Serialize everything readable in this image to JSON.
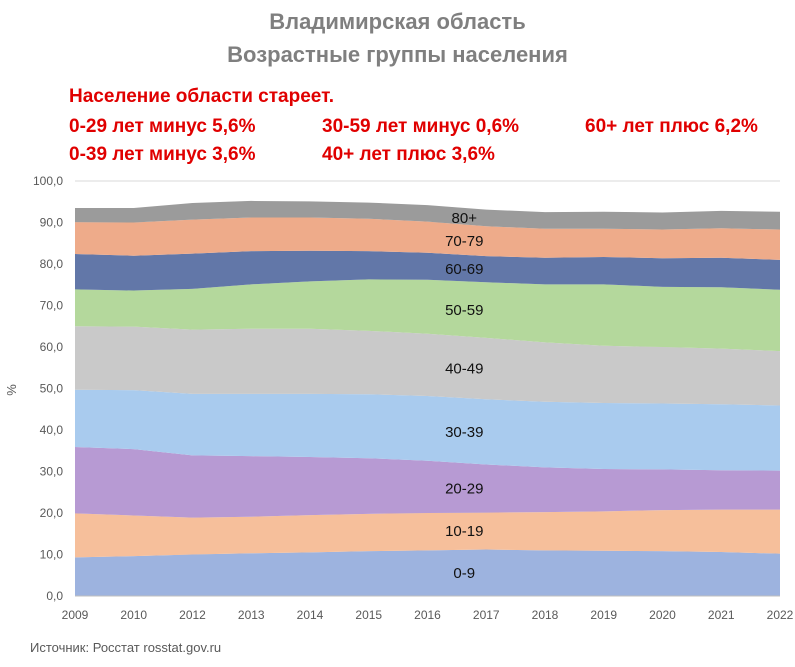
{
  "header": {
    "title": "Владимирская область",
    "subtitle": "Возрастные группы населения"
  },
  "notes": {
    "headline": "Население области стареет.",
    "n1": "0-29 лет минус 5,6%",
    "n2": "30-59 лет минус 0,6%",
    "n3": "60+ лет плюс 6,2%",
    "n4": "0-39 лет минус 3,6%",
    "n5": "40+ лет плюс 3,6%"
  },
  "source": "Источник: Росстат rosstat.gov.ru",
  "chart_data": {
    "type": "area",
    "stacked": true,
    "categories": [
      "2009",
      "2010",
      "2012",
      "2013",
      "2014",
      "2015",
      "2016",
      "2017",
      "2018",
      "2019",
      "2020",
      "2021",
      "2022"
    ],
    "ylabel": "%",
    "ylim": [
      0,
      100
    ],
    "yticks": [
      "0,0",
      "10,0",
      "20,0",
      "30,0",
      "40,0",
      "50,0",
      "60,0",
      "70,0",
      "80,0",
      "90,0",
      "100,0"
    ],
    "grid": true,
    "series": [
      {
        "name": "0-9",
        "color": "#9db3df",
        "values": [
          9.3,
          9.6,
          10.0,
          10.3,
          10.5,
          10.8,
          11.0,
          11.2,
          11.0,
          10.9,
          10.8,
          10.6,
          10.2
        ]
      },
      {
        "name": "10-19",
        "color": "#f6bf9b",
        "values": [
          10.6,
          9.8,
          8.9,
          8.8,
          9.0,
          9.0,
          9.0,
          8.9,
          9.2,
          9.5,
          9.9,
          10.2,
          10.6
        ]
      },
      {
        "name": "20-29",
        "color": "#b79ad3",
        "values": [
          16.0,
          16.0,
          15.0,
          14.6,
          14.0,
          13.4,
          12.6,
          11.6,
          10.8,
          10.2,
          9.8,
          9.5,
          9.4
        ]
      },
      {
        "name": "30-39",
        "color": "#a9cbee",
        "values": [
          13.8,
          14.2,
          14.8,
          15.0,
          15.2,
          15.4,
          15.6,
          15.7,
          15.8,
          15.9,
          15.9,
          15.9,
          15.7
        ]
      },
      {
        "name": "40-49",
        "color": "#c9c9c9",
        "values": [
          15.3,
          15.3,
          15.5,
          15.7,
          15.7,
          15.3,
          15.0,
          14.8,
          14.3,
          13.8,
          13.6,
          13.4,
          13.1
        ]
      },
      {
        "name": "50-59",
        "color": "#b4d89c",
        "values": [
          8.9,
          8.7,
          9.8,
          10.7,
          11.4,
          12.4,
          13.0,
          13.4,
          14.0,
          14.8,
          14.5,
          14.8,
          14.8
        ]
      },
      {
        "name": "60-69",
        "color": "#6277a8",
        "values": [
          8.5,
          8.4,
          8.5,
          8.0,
          7.4,
          6.8,
          6.5,
          6.3,
          6.4,
          6.6,
          6.9,
          7.1,
          7.2
        ]
      },
      {
        "name": "70-79",
        "color": "#eeab8a",
        "values": [
          7.7,
          8.0,
          8.2,
          8.1,
          8.0,
          7.8,
          7.5,
          7.2,
          7.0,
          6.8,
          6.9,
          7.1,
          7.3
        ]
      },
      {
        "name": "80+",
        "color": "#9b9b9b",
        "values": [
          3.4,
          3.5,
          4.0,
          4.0,
          3.9,
          3.9,
          4.0,
          4.0,
          4.0,
          4.1,
          4.1,
          4.2,
          4.3
        ]
      }
    ]
  }
}
